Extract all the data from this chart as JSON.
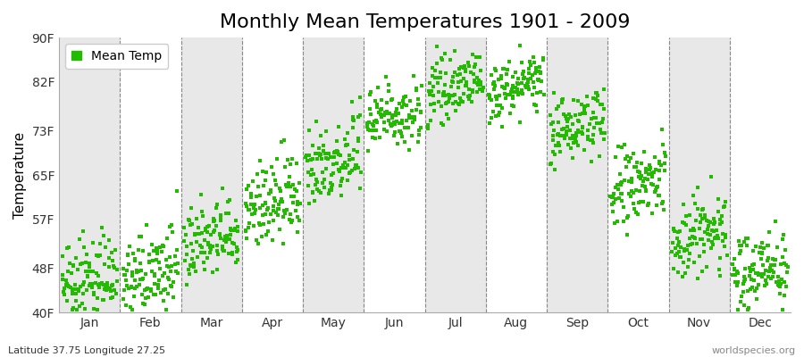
{
  "title": "Monthly Mean Temperatures 1901 - 2009",
  "ylabel": "Temperature",
  "bottom_left_text": "Latitude 37.75 Longitude 27.25",
  "bottom_right_text": "worldspecies.org",
  "legend_label": "Mean Temp",
  "dot_color": "#22bb00",
  "background_color": "#ffffff",
  "band_color": "#e8e8e8",
  "ytick_labels": [
    "40F",
    "48F",
    "57F",
    "65F",
    "73F",
    "82F",
    "90F"
  ],
  "ytick_values": [
    40,
    48,
    57,
    65,
    73,
    82,
    90
  ],
  "ylim": [
    40,
    90
  ],
  "months": [
    "Jan",
    "Feb",
    "Mar",
    "Apr",
    "May",
    "Jun",
    "Jul",
    "Aug",
    "Sep",
    "Oct",
    "Nov",
    "Dec"
  ],
  "month_means_F": [
    46,
    47,
    53,
    60,
    68,
    76,
    81,
    81,
    74,
    63,
    54,
    48
  ],
  "month_stds_F": [
    3.5,
    3.5,
    3.5,
    4,
    4,
    3,
    2.5,
    2.5,
    3,
    4,
    4,
    3.5
  ],
  "year_start": 1901,
  "year_end": 2009,
  "title_fontsize": 16,
  "axis_fontsize": 11,
  "tick_fontsize": 10,
  "legend_fontsize": 10,
  "dot_size": 5,
  "dpi": 100
}
